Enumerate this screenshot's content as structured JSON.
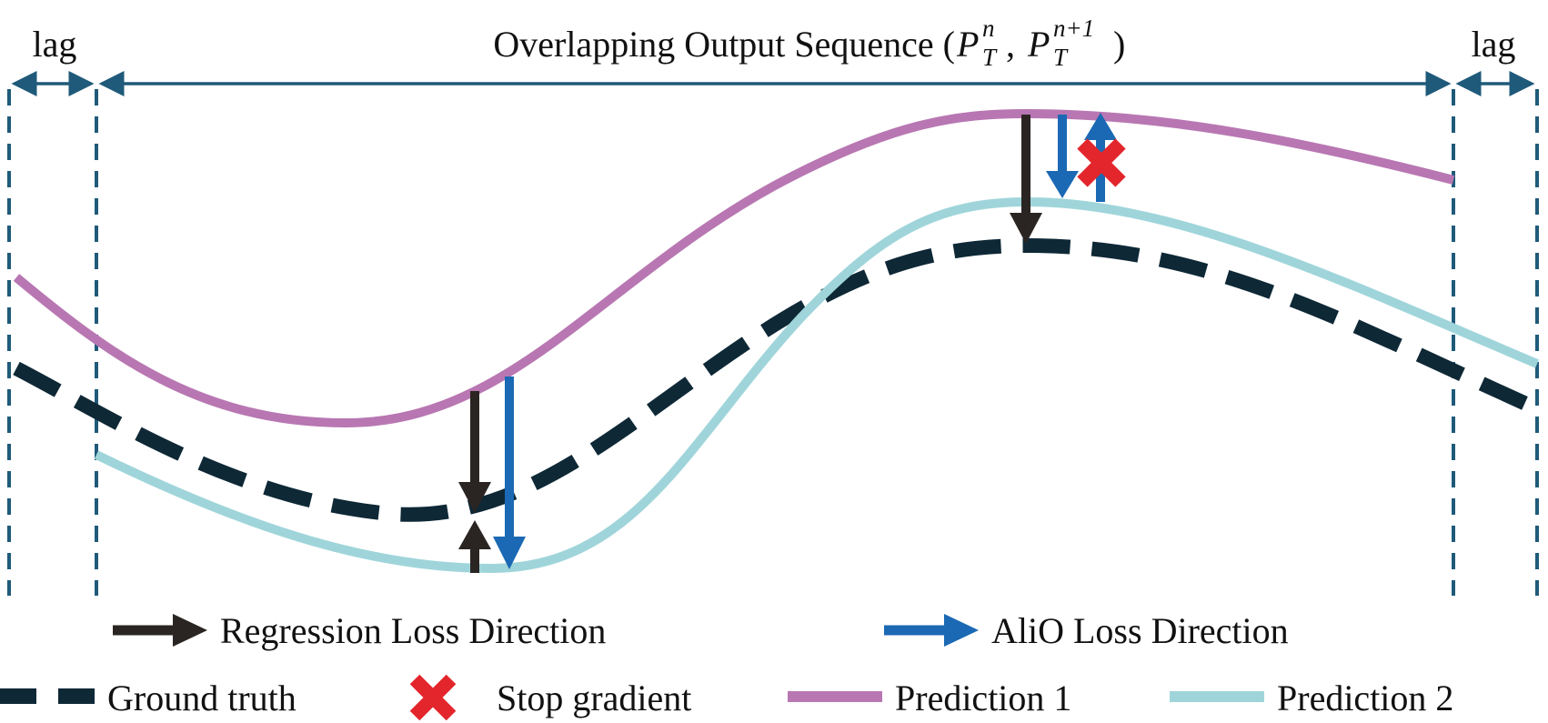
{
  "header": {
    "lag_left": "lag",
    "lag_right": "lag",
    "title_prefix": "Overlapping Output Sequence (",
    "p1_base": "P",
    "p1_sup": "n",
    "p1_sub": "T",
    "separator": " ,",
    "p2_base": "P",
    "p2_sup": "n+1",
    "p2_sub": "T",
    "title_suffix": ")"
  },
  "legend": {
    "regression": "Regression Loss Direction",
    "alio": "AliO Loss Direction",
    "ground_truth": "Ground truth",
    "stop_gradient": "Stop gradient",
    "prediction1": "Prediction 1",
    "prediction2": "Prediction 2"
  },
  "colors": {
    "prediction1": "#b877b2",
    "prediction2": "#9fd5da",
    "ground_truth": "#0e2836",
    "regression_arrow": "#2a2523",
    "alio_arrow": "#1b69b4",
    "stop_gradient": "#e3262c",
    "boundary": "#1f5a7a"
  }
}
